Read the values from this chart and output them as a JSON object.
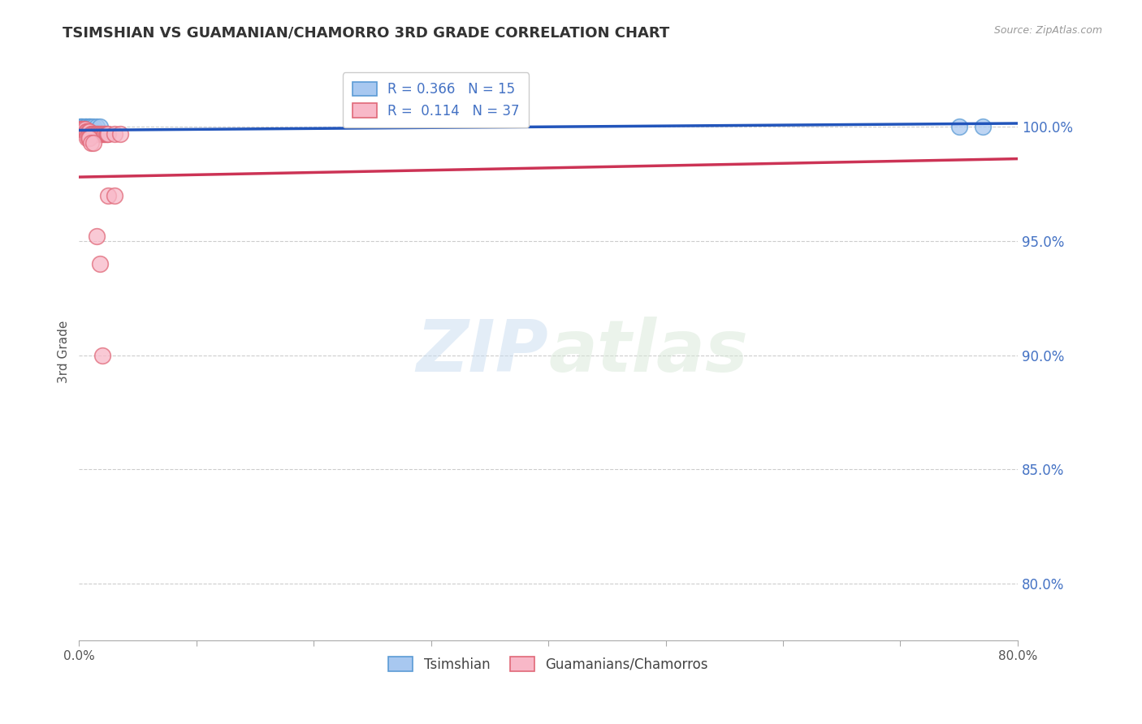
{
  "title": "TSIMSHIAN VS GUAMANIAN/CHAMORRO 3RD GRADE CORRELATION CHART",
  "source": "Source: ZipAtlas.com",
  "ylabel": "3rd Grade",
  "y_tick_labels": [
    "80.0%",
    "85.0%",
    "90.0%",
    "95.0%",
    "100.0%"
  ],
  "y_tick_values": [
    0.8,
    0.85,
    0.9,
    0.95,
    1.0
  ],
  "xlim": [
    0.0,
    0.8
  ],
  "ylim": [
    0.775,
    1.028
  ],
  "tsimshian_color": "#A8C8F0",
  "tsimshian_edge": "#5B9BD5",
  "guam_color": "#F8B8C8",
  "guam_edge": "#E06878",
  "trend_blue": "#2255BB",
  "trend_pink": "#CC3355",
  "R_tsimshian": 0.366,
  "N_tsimshian": 15,
  "R_guam": 0.114,
  "N_guam": 37,
  "legend_tsimshian": "Tsimshian",
  "legend_guam": "Guamanians/Chamorros",
  "tsimshian_x": [
    0.001,
    0.002,
    0.003,
    0.004,
    0.005,
    0.006,
    0.007,
    0.008,
    0.009,
    0.01,
    0.012,
    0.015,
    0.018,
    0.75,
    0.77
  ],
  "tsimshian_y": [
    1.0,
    1.0,
    1.0,
    0.999,
    1.0,
    1.0,
    0.999,
    1.0,
    1.0,
    1.0,
    1.0,
    1.0,
    1.0,
    1.0,
    1.0
  ],
  "guam_x": [
    0.001,
    0.002,
    0.003,
    0.004,
    0.005,
    0.006,
    0.007,
    0.008,
    0.009,
    0.01,
    0.011,
    0.012,
    0.013,
    0.014,
    0.015,
    0.016,
    0.017,
    0.018,
    0.019,
    0.02,
    0.021,
    0.022,
    0.023,
    0.024,
    0.025,
    0.03,
    0.035,
    0.007,
    0.008,
    0.009,
    0.01,
    0.012,
    0.015,
    0.018,
    0.02,
    0.025,
    0.03
  ],
  "guam_y": [
    0.999,
    0.999,
    0.999,
    0.999,
    0.999,
    0.998,
    0.998,
    0.998,
    0.998,
    0.997,
    0.997,
    0.997,
    0.997,
    0.997,
    0.997,
    0.997,
    0.997,
    0.997,
    0.997,
    0.997,
    0.997,
    0.997,
    0.997,
    0.997,
    0.997,
    0.997,
    0.997,
    0.995,
    0.995,
    0.995,
    0.993,
    0.993,
    0.952,
    0.94,
    0.9,
    0.97,
    0.97
  ],
  "watermark_zip": "ZIP",
  "watermark_atlas": "atlas",
  "background_color": "#FFFFFF",
  "grid_color": "#CCCCCC",
  "yticklabel_color": "#4472C4",
  "title_color": "#333333",
  "source_color": "#999999"
}
